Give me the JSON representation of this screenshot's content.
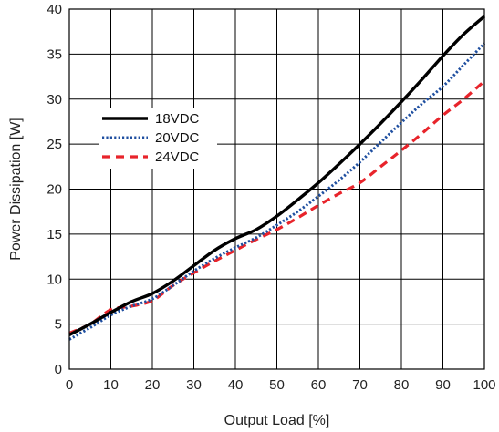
{
  "chart_data": {
    "type": "line",
    "title": "",
    "xlabel": "Output Load [%]",
    "ylabel": "Power Dissipation [W]",
    "xlim": [
      0,
      100
    ],
    "ylim": [
      0,
      40
    ],
    "xticks": [
      0,
      10,
      20,
      30,
      40,
      50,
      60,
      70,
      80,
      90,
      100
    ],
    "yticks": [
      0,
      5,
      10,
      15,
      20,
      25,
      30,
      35,
      40
    ],
    "grid": true,
    "legend_position": "upper-left",
    "series": [
      {
        "name": "18VDC",
        "color": "#000000",
        "style": "solid",
        "x": [
          0,
          5,
          10,
          15,
          20,
          25,
          30,
          35,
          40,
          45,
          50,
          55,
          60,
          65,
          70,
          75,
          80,
          85,
          90,
          95,
          100
        ],
        "y": [
          3.8,
          5.0,
          6.3,
          7.5,
          8.4,
          9.8,
          11.5,
          13.2,
          14.5,
          15.5,
          17.0,
          18.8,
          20.7,
          22.8,
          25.0,
          27.3,
          29.7,
          32.2,
          34.8,
          37.2,
          39.2
        ]
      },
      {
        "name": "20VDC",
        "color": "#1f4fa0",
        "style": "dotted",
        "x": [
          0,
          5,
          10,
          15,
          20,
          25,
          30,
          35,
          40,
          45,
          50,
          55,
          60,
          65,
          70,
          75,
          80,
          85,
          90,
          95,
          100
        ],
        "y": [
          3.3,
          4.6,
          6.0,
          7.0,
          7.8,
          9.3,
          10.9,
          12.3,
          13.5,
          14.6,
          16.0,
          17.5,
          19.2,
          21.0,
          23.0,
          25.2,
          27.4,
          29.5,
          31.4,
          33.8,
          36.2
        ]
      },
      {
        "name": "24VDC",
        "color": "#e8242b",
        "style": "dashed",
        "x": [
          0,
          5,
          10,
          15,
          20,
          25,
          30,
          35,
          40,
          45,
          50,
          55,
          60,
          65,
          70,
          75,
          80,
          85,
          90,
          95,
          100
        ],
        "y": [
          4.0,
          5.0,
          6.6,
          7.0,
          7.6,
          9.3,
          10.7,
          12.0,
          13.2,
          14.4,
          15.5,
          16.8,
          18.2,
          19.5,
          20.7,
          22.5,
          24.3,
          26.2,
          28.2,
          30.0,
          32.0
        ]
      }
    ]
  }
}
